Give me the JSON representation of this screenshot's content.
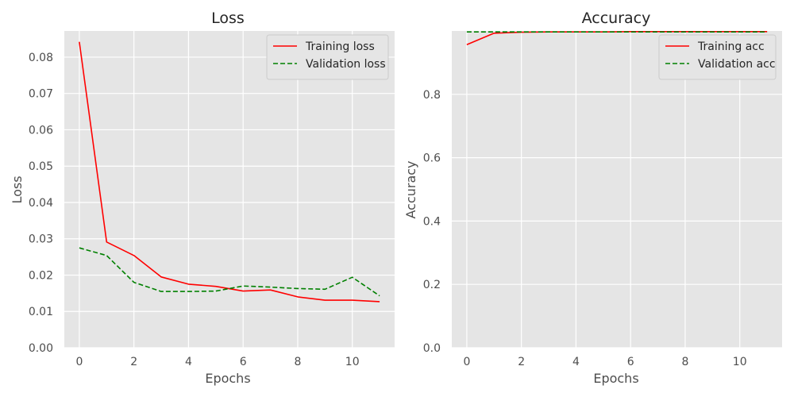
{
  "chart_data": [
    {
      "type": "line",
      "title": "Loss",
      "xlabel": "Epochs",
      "ylabel": "Loss",
      "x": [
        0,
        1,
        2,
        3,
        4,
        5,
        6,
        7,
        8,
        9,
        10,
        11
      ],
      "xlim": [
        -0.55,
        11.55
      ],
      "ylim": [
        0.0,
        0.0872
      ],
      "xticks": [
        0,
        2,
        4,
        6,
        8,
        10
      ],
      "yticks": [
        0.0,
        0.01,
        0.02,
        0.03,
        0.04,
        0.05,
        0.06,
        0.07,
        0.08
      ],
      "ytick_labels": [
        "0.00",
        "0.01",
        "0.02",
        "0.03",
        "0.04",
        "0.05",
        "0.06",
        "0.07",
        "0.08"
      ],
      "grid": true,
      "legend_position": "top-right",
      "series": [
        {
          "name": "Training loss",
          "color": "#ff0000",
          "style": "solid",
          "values": [
            0.0842,
            0.0291,
            0.0254,
            0.0195,
            0.0175,
            0.0169,
            0.0156,
            0.0159,
            0.014,
            0.0131,
            0.0131,
            0.0127
          ]
        },
        {
          "name": "Validation loss",
          "color": "#008000",
          "style": "dashed",
          "values": [
            0.0275,
            0.0254,
            0.018,
            0.0155,
            0.0155,
            0.0156,
            0.017,
            0.0167,
            0.0163,
            0.0161,
            0.0194,
            0.0143
          ]
        }
      ]
    },
    {
      "type": "line",
      "title": "Accuracy",
      "xlabel": "Epochs",
      "ylabel": "Accuracy",
      "x": [
        0,
        1,
        2,
        3,
        4,
        5,
        6,
        7,
        8,
        9,
        10,
        11
      ],
      "xlim": [
        -0.55,
        11.55
      ],
      "ylim": [
        0.0,
        1.0
      ],
      "xticks": [
        0,
        2,
        4,
        6,
        8,
        10
      ],
      "yticks": [
        0.0,
        0.2,
        0.4,
        0.6,
        0.8
      ],
      "ytick_labels": [
        "0.0",
        "0.2",
        "0.4",
        "0.6",
        "0.8"
      ],
      "grid": true,
      "legend_position": "top-right",
      "series": [
        {
          "name": "Training acc",
          "color": "#ff0000",
          "style": "solid",
          "values": [
            0.957,
            0.993,
            0.996,
            0.997,
            0.997,
            0.997,
            0.998,
            0.998,
            0.998,
            0.998,
            0.998,
            0.998
          ]
        },
        {
          "name": "Validation acc",
          "color": "#008000",
          "style": "dashed",
          "values": [
            0.997,
            0.997,
            0.997,
            0.997,
            0.997,
            0.997,
            0.997,
            0.997,
            0.997,
            0.997,
            0.997,
            0.997
          ]
        }
      ]
    }
  ]
}
